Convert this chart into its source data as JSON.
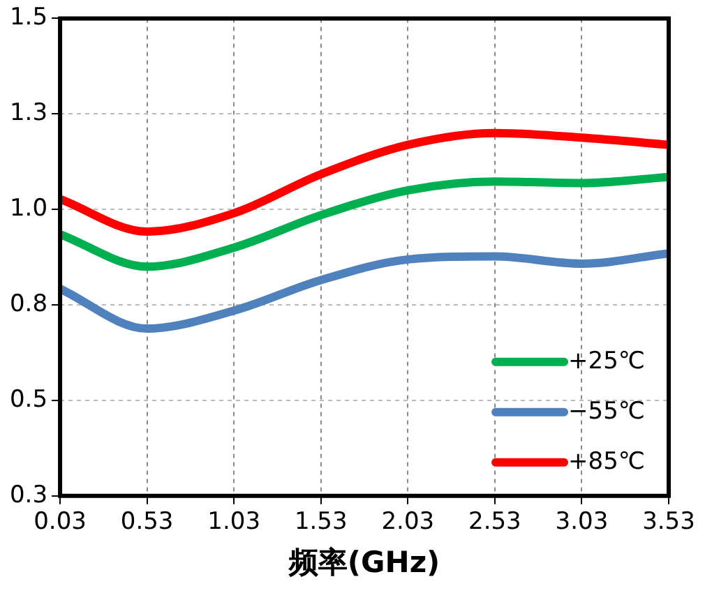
{
  "chart_data": {
    "type": "line",
    "xlabel": "频率(GHz)",
    "xlim": [
      0.03,
      3.53
    ],
    "xticks": [
      0.03,
      0.53,
      1.03,
      1.53,
      2.03,
      2.53,
      3.03,
      3.53
    ],
    "ylim": [
      0.25,
      1.5
    ],
    "yticks": [
      {
        "value": 0.25,
        "label": "0.3"
      },
      {
        "value": 0.5,
        "label": "0.5"
      },
      {
        "value": 0.75,
        "label": "0.8"
      },
      {
        "value": 1.0,
        "label": "1.0"
      },
      {
        "value": 1.25,
        "label": "1.3"
      },
      {
        "value": 1.5,
        "label": "1.5"
      }
    ],
    "x": [
      0.03,
      0.53,
      1.03,
      1.53,
      2.03,
      2.53,
      3.03,
      3.53
    ],
    "series": [
      {
        "name": "+25℃",
        "color": "#00b050",
        "values": [
          0.935,
          0.85,
          0.9,
          0.985,
          1.05,
          1.073,
          1.069,
          1.085
        ]
      },
      {
        "name": "−55℃",
        "color": "#4f81bd",
        "values": [
          0.792,
          0.688,
          0.735,
          0.815,
          0.869,
          0.877,
          0.858,
          0.885
        ]
      },
      {
        "name": "+85℃",
        "color": "#ff0000",
        "values": [
          1.027,
          0.942,
          0.99,
          1.092,
          1.169,
          1.2,
          1.188,
          1.169
        ]
      }
    ],
    "grid": true,
    "legend": "bottom right",
    "marker": "none",
    "line_style": "solid"
  }
}
